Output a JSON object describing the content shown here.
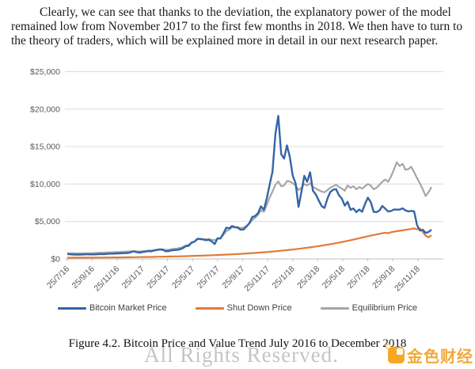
{
  "body": {
    "paragraph": "Clearly, we can see that thanks to the deviation, the explanatory power of the model remained low from November 2017 to the first few months in 2018. We then have to turn to the theory of traders, which will be explained more in detail in our next research paper."
  },
  "figure": {
    "caption": "Figure 4.2. Bitcoin Price and Value Trend July 2016 to December 2018"
  },
  "watermark": {
    "text": "All Rights Reserved."
  },
  "branding": {
    "logo_text": "金色财经",
    "logo_color": "#F7A823"
  },
  "chart_data": {
    "type": "line",
    "title": "",
    "xlabel": "",
    "ylabel": "",
    "ylim": [
      0,
      25000
    ],
    "grid": true,
    "legend_position": "bottom",
    "x_frequency": "weekly, 25/7/16 to late Dec 2018",
    "x_labels": [
      "25/7/16",
      "25/9/16",
      "25/11/16",
      "25/1/17",
      "25/3/17",
      "25/5/17",
      "25/7/17",
      "25/9/17",
      "25/11/17",
      "25/1/18",
      "25/3/18",
      "25/5/18",
      "25/7/18",
      "25/9/18",
      "25/11/18"
    ],
    "y_ticks": {
      "labels": [
        "$0",
        "$5,000",
        "$10,000",
        "$15,000",
        "$20,000",
        "$25,000"
      ],
      "values": [
        0,
        5000,
        10000,
        15000,
        20000,
        25000
      ]
    },
    "series": [
      {
        "name": "Bitcoin Market Price",
        "color": "#3465A8",
        "values": [
          660,
          610,
          590,
          570,
          580,
          575,
          610,
          608,
          600,
          605,
          610,
          640,
          640,
          650,
          700,
          705,
          710,
          740,
          735,
          760,
          780,
          790,
          900,
          1020,
          900,
          830,
          920,
          970,
          1060,
          1010,
          1120,
          1190,
          1260,
          1230,
          1040,
          1040,
          1140,
          1180,
          1210,
          1290,
          1440,
          1700,
          1750,
          2190,
          2300,
          2680,
          2650,
          2590,
          2500,
          2560,
          2330,
          2000,
          2750,
          2730,
          3380,
          4160,
          4090,
          4390,
          4230,
          4170,
          3900,
          3930,
          4320,
          4780,
          5600,
          5730,
          6130,
          7020,
          6560,
          8040,
          9900,
          11640,
          16700,
          19100,
          14000,
          13400,
          15150,
          13600,
          11100,
          10100,
          6950,
          8900,
          11100,
          10300,
          11570,
          9100,
          8600,
          7800,
          7060,
          6810,
          8050,
          8940,
          9250,
          9320,
          8500,
          8040,
          7130,
          7620,
          6550,
          6730,
          6250,
          6600,
          6300,
          7320,
          8180,
          7600,
          6290,
          6250,
          6470,
          7070,
          6720,
          6330,
          6400,
          6600,
          6590,
          6590,
          6750,
          6490,
          6340,
          6420,
          6350,
          4560,
          3800,
          3900,
          3470,
          3600,
          3900
        ]
      },
      {
        "name": "Shut Down Price",
        "color": "#E07B39",
        "values": [
          160,
          162,
          164,
          165,
          166,
          168,
          170,
          172,
          174,
          176,
          178,
          181,
          184,
          187,
          190,
          194,
          198,
          202,
          206,
          210,
          215,
          220,
          226,
          232,
          238,
          243,
          249,
          255,
          262,
          269,
          276,
          284,
          292,
          300,
          308,
          316,
          325,
          334,
          343,
          353,
          363,
          374,
          385,
          397,
          409,
          422,
          435,
          449,
          463,
          478,
          493,
          509,
          525,
          542,
          560,
          578,
          597,
          617,
          638,
          659,
          681,
          704,
          728,
          753,
          779,
          806,
          834,
          863,
          893,
          924,
          956,
          990,
          1025,
          1061,
          1098,
          1136,
          1176,
          1217,
          1259,
          1303,
          1349,
          1396,
          1445,
          1495,
          1547,
          1601,
          1657,
          1715,
          1775,
          1837,
          1900,
          1966,
          2034,
          2105,
          2178,
          2254,
          2332,
          2413,
          2497,
          2583,
          2673,
          2760,
          2850,
          2940,
          3030,
          3110,
          3190,
          3270,
          3350,
          3430,
          3500,
          3440,
          3560,
          3640,
          3700,
          3760,
          3820,
          3880,
          3940,
          4000,
          4080,
          3950,
          4050,
          3600,
          3100,
          2900,
          3150
        ]
      },
      {
        "name": "Equilibrium Price",
        "color": "#A6A6A6",
        "values": [
          780,
          760,
          750,
          740,
          745,
          750,
          760,
          770,
          775,
          780,
          800,
          820,
          830,
          850,
          870,
          890,
          900,
          920,
          930,
          950,
          970,
          990,
          1010,
          1040,
          1020,
          1000,
          1030,
          1060,
          1100,
          1120,
          1180,
          1240,
          1300,
          1280,
          1200,
          1230,
          1300,
          1350,
          1400,
          1480,
          1600,
          1800,
          1900,
          2150,
          2300,
          2600,
          2700,
          2650,
          2600,
          2650,
          2550,
          2500,
          2700,
          2800,
          3200,
          3700,
          3900,
          4200,
          4300,
          4250,
          4100,
          4200,
          4400,
          4700,
          5200,
          5500,
          5900,
          6500,
          6300,
          7200,
          8200,
          9000,
          9900,
          10350,
          9700,
          9800,
          10400,
          10350,
          10100,
          9800,
          9200,
          9500,
          10000,
          9800,
          10100,
          9600,
          9400,
          9200,
          9000,
          8900,
          9200,
          9500,
          9700,
          9900,
          9600,
          9400,
          9100,
          9800,
          9500,
          9700,
          9300,
          9600,
          9400,
          9700,
          10000,
          9800,
          9300,
          9500,
          9900,
          10300,
          10600,
          10300,
          11000,
          11900,
          12900,
          12400,
          12700,
          11900,
          12000,
          12300,
          11600,
          10800,
          10100,
          9300,
          8400,
          8900,
          9600
        ]
      }
    ]
  }
}
